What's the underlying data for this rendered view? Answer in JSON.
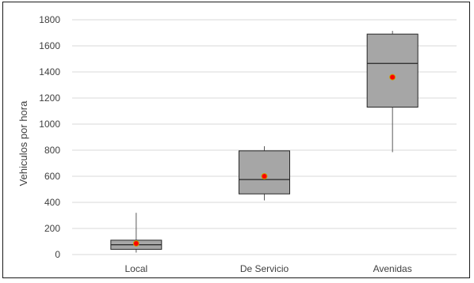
{
  "chart_data": {
    "type": "box",
    "title": "",
    "xlabel": "",
    "ylabel": "Vehiculos por hora",
    "ylim": [
      0,
      1800
    ],
    "yticks": [
      0,
      200,
      400,
      600,
      800,
      1000,
      1200,
      1400,
      1600,
      1800
    ],
    "ytick_labels": [
      "0",
      "200",
      "400",
      "600",
      "800",
      "1000",
      "1200",
      "1400",
      "1600",
      "1800"
    ],
    "grid": true,
    "categories": [
      "Local",
      "De Servicio",
      "Avenidas"
    ],
    "boxes": [
      {
        "category": "Local",
        "whisker_low": 15,
        "q1": 40,
        "median": 75,
        "q3": 110,
        "whisker_high": 320,
        "mean": 85
      },
      {
        "category": "De Servicio",
        "whisker_low": 415,
        "q1": 465,
        "median": 575,
        "q3": 795,
        "whisker_high": 830,
        "mean": 600
      },
      {
        "category": "Avenidas",
        "whisker_low": 785,
        "q1": 1130,
        "median": 1465,
        "q3": 1690,
        "whisker_high": 1715,
        "mean": 1360
      }
    ],
    "colors": {
      "box_fill": "#a6a6a6",
      "box_stroke": "#262626",
      "mean_marker": "#ff0000",
      "mean_marker_edge": "#c8a000",
      "grid": "#d9d9d9",
      "whisker": "#595959"
    }
  }
}
